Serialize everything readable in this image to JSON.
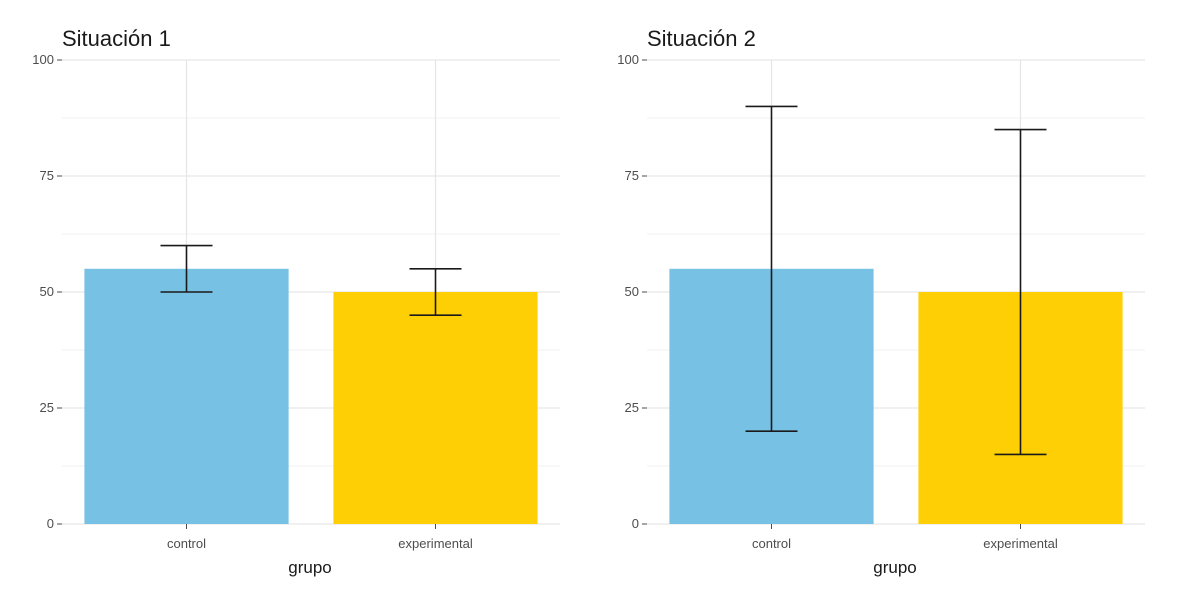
{
  "chart_data": [
    {
      "type": "bar",
      "title": "Situación 1",
      "xlabel": "grupo",
      "ylabel": "",
      "categories": [
        "control",
        "experimental"
      ],
      "values": [
        55,
        50
      ],
      "error_bars": [
        {
          "low": 50,
          "high": 60
        },
        {
          "low": 45,
          "high": 55
        }
      ],
      "colors": [
        "#76C1E4",
        "#FFCF05"
      ],
      "ylim": [
        0,
        100
      ],
      "yticks": [
        0,
        25,
        50,
        75,
        100
      ],
      "grid": true,
      "legend": "none"
    },
    {
      "type": "bar",
      "title": "Situación 2",
      "xlabel": "grupo",
      "ylabel": "",
      "categories": [
        "control",
        "experimental"
      ],
      "values": [
        55,
        50
      ],
      "error_bars": [
        {
          "low": 20,
          "high": 90
        },
        {
          "low": 15,
          "high": 85
        }
      ],
      "colors": [
        "#76C1E4",
        "#FFCF05"
      ],
      "ylim": [
        0,
        100
      ],
      "yticks": [
        0,
        25,
        50,
        75,
        100
      ],
      "grid": true,
      "legend": "none"
    }
  ]
}
